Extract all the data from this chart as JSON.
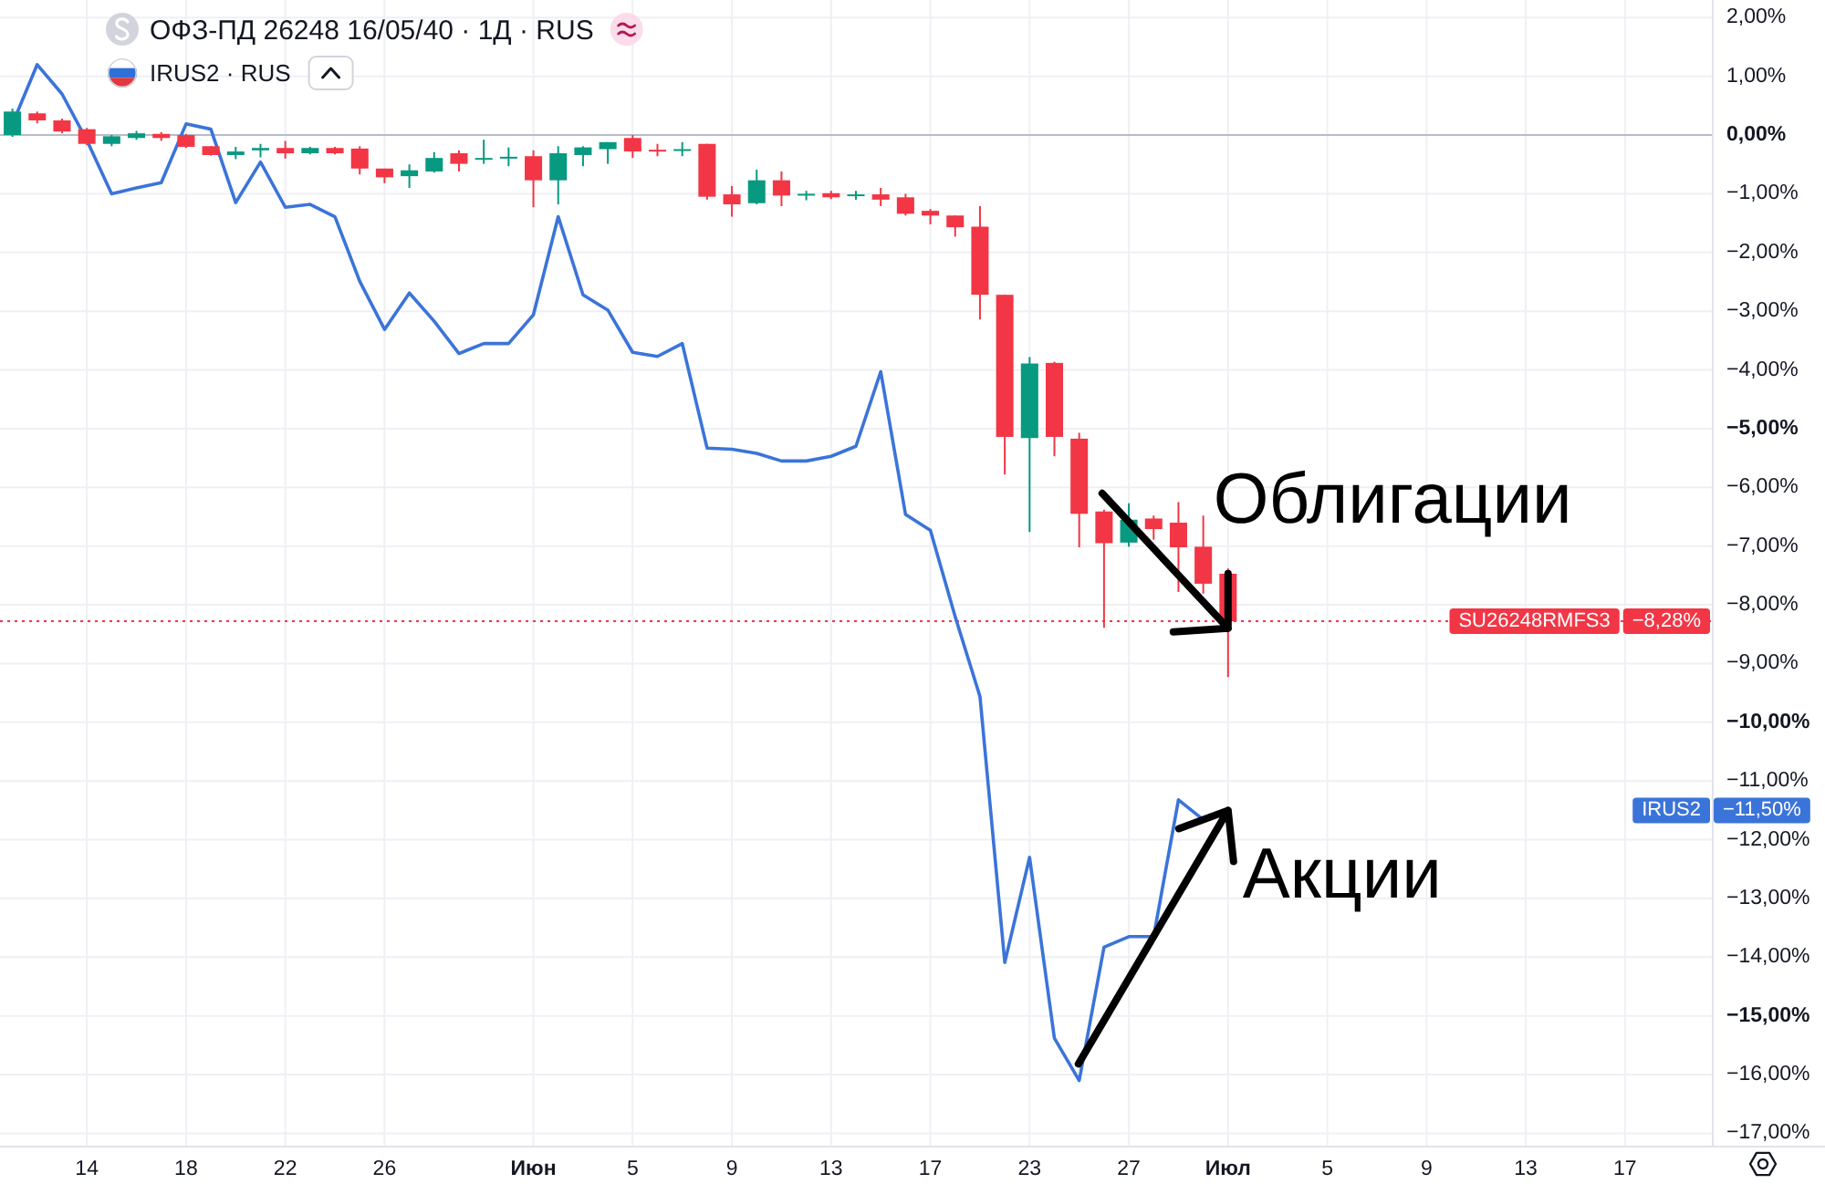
{
  "chart_data": {
    "type": "candlestick",
    "title": "ОФЗ-ПД 26248 16/05/40 · 1Д · RUS",
    "subtitle": "IRUS2 · RUS",
    "categories": [
      null,
      null,
      null,
      "14",
      null,
      null,
      null,
      "18",
      null,
      null,
      null,
      "22",
      null,
      null,
      null,
      "26",
      null,
      null,
      null,
      null,
      null,
      "Июн",
      null,
      null,
      null,
      "5",
      null,
      null,
      null,
      "9",
      null,
      null,
      null,
      "13",
      null,
      null,
      null,
      "17",
      null,
      null,
      null,
      "23",
      null,
      null,
      null,
      "27",
      null,
      null,
      null,
      "Июл",
      null,
      null,
      null,
      "5",
      null,
      null,
      null,
      "9",
      null,
      null,
      null,
      "13",
      null,
      null,
      null,
      "17",
      null,
      null,
      null
    ],
    "series": [
      {
        "name": "SU26248RMFS3",
        "ohlc": [
          [
            0.0,
            0.45,
            -0.03,
            0.4
          ],
          [
            0.37,
            0.4,
            0.2,
            0.25
          ],
          [
            0.25,
            0.28,
            0.03,
            0.06
          ],
          [
            0.1,
            0.12,
            -0.17,
            -0.15
          ],
          [
            -0.15,
            0.0,
            -0.19,
            -0.02
          ],
          [
            -0.05,
            0.07,
            -0.08,
            0.03
          ],
          [
            0.02,
            0.05,
            -0.1,
            -0.05
          ],
          [
            0.0,
            0.02,
            -0.22,
            -0.2
          ],
          [
            -0.19,
            -0.19,
            -0.35,
            -0.34
          ],
          [
            -0.34,
            -0.2,
            -0.41,
            -0.28
          ],
          [
            -0.26,
            -0.15,
            -0.38,
            -0.22
          ],
          [
            -0.22,
            -0.1,
            -0.4,
            -0.31
          ],
          [
            -0.31,
            -0.2,
            -0.33,
            -0.22
          ],
          [
            -0.22,
            -0.2,
            -0.33,
            -0.31
          ],
          [
            -0.23,
            -0.19,
            -0.67,
            -0.57
          ],
          [
            -0.57,
            -0.57,
            -0.82,
            -0.72
          ],
          [
            -0.7,
            -0.5,
            -0.9,
            -0.6
          ],
          [
            -0.62,
            -0.29,
            -0.64,
            -0.39
          ],
          [
            -0.31,
            -0.26,
            -0.62,
            -0.49
          ],
          [
            -0.41,
            -0.08,
            -0.49,
            -0.39
          ],
          [
            -0.4,
            -0.21,
            -0.53,
            -0.37
          ],
          [
            -0.36,
            -0.26,
            -1.23,
            -0.77
          ],
          [
            -0.77,
            -0.19,
            -1.18,
            -0.31
          ],
          [
            -0.34,
            -0.19,
            -0.53,
            -0.21
          ],
          [
            -0.24,
            -0.12,
            -0.49,
            -0.12
          ],
          [
            -0.05,
            0.0,
            -0.39,
            -0.28
          ],
          [
            -0.25,
            -0.15,
            -0.36,
            -0.28
          ],
          [
            -0.25,
            -0.12,
            -0.36,
            -0.24
          ],
          [
            -0.15,
            -0.15,
            -1.1,
            -1.05
          ],
          [
            -1.01,
            -0.87,
            -1.39,
            -1.18
          ],
          [
            -1.16,
            -0.59,
            -1.18,
            -0.77
          ],
          [
            -0.77,
            -0.62,
            -1.21,
            -1.03
          ],
          [
            -1.02,
            -0.95,
            -1.11,
            -1.0
          ],
          [
            -0.99,
            -0.95,
            -1.09,
            -1.06
          ],
          [
            -1.04,
            -0.95,
            -1.1,
            -1.01
          ],
          [
            -1.01,
            -0.9,
            -1.21,
            -1.1
          ],
          [
            -1.06,
            -1.0,
            -1.37,
            -1.34
          ],
          [
            -1.29,
            -1.26,
            -1.52,
            -1.37
          ],
          [
            -1.37,
            -1.37,
            -1.73,
            -1.57
          ],
          [
            -1.56,
            -1.21,
            -3.14,
            -2.72
          ],
          [
            -2.72,
            -2.72,
            -5.78,
            -5.14
          ],
          [
            -5.16,
            -3.78,
            -6.76,
            -3.89
          ],
          [
            -3.88,
            -3.86,
            -5.47,
            -5.14
          ],
          [
            -5.17,
            -5.07,
            -7.02,
            -6.45
          ],
          [
            -6.41,
            -6.38,
            -8.39,
            -6.95
          ],
          [
            -6.94,
            -6.27,
            -7.01,
            -6.55
          ],
          [
            -6.53,
            -6.48,
            -6.89,
            -6.71
          ],
          [
            -6.6,
            -6.25,
            -7.78,
            -7.02
          ],
          [
            -7.01,
            -6.48,
            -7.81,
            -7.64
          ],
          [
            -7.47,
            -7.38,
            -9.23,
            -8.28
          ],
          null,
          null,
          null,
          null,
          null,
          null,
          null,
          null,
          null,
          null,
          null,
          null,
          null,
          null,
          null,
          null,
          null,
          null,
          null
        ],
        "colors": [
          "#089981",
          "#f23645",
          "#f23645",
          "#f23645",
          "#089981",
          "#089981",
          "#f23645",
          "#f23645",
          "#f23645",
          "#089981",
          "#089981",
          "#f23645",
          "#089981",
          "#f23645",
          "#f23645",
          "#f23645",
          "#089981",
          "#089981",
          "#f23645",
          "#089981",
          "#089981",
          "#f23645",
          "#089981",
          "#089981",
          "#089981",
          "#f23645",
          "#f23645",
          "#089981",
          "#f23645",
          "#f23645",
          "#089981",
          "#f23645",
          "#089981",
          "#f23645",
          "#089981",
          "#f23645",
          "#f23645",
          "#f23645",
          "#f23645",
          "#f23645",
          "#f23645",
          "#089981",
          "#f23645",
          "#f23645",
          "#f23645",
          "#089981",
          "#f23645",
          "#f23645",
          "#f23645",
          "#f23645",
          null,
          null,
          null,
          null,
          null,
          null,
          null,
          null,
          null,
          null,
          null,
          null,
          null,
          null,
          null,
          null,
          null,
          null,
          null
        ]
      },
      {
        "type": "line",
        "name": "IRUS2",
        "color": "#3b74d9",
        "values": [
          0.19,
          1.2,
          0.7,
          -0.09,
          -1.0,
          -0.9,
          -0.81,
          0.19,
          0.1,
          -1.15,
          -0.46,
          -1.23,
          -1.18,
          -1.39,
          -2.49,
          -3.31,
          -2.69,
          -3.17,
          -3.72,
          -3.55,
          -3.55,
          -3.06,
          -1.39,
          -2.72,
          -2.98,
          -3.7,
          -3.77,
          -3.55,
          -5.33,
          -5.35,
          -5.42,
          -5.55,
          -5.55,
          -5.47,
          -5.3,
          -4.03,
          -6.46,
          -6.73,
          -8.2,
          -9.56,
          -14.09,
          -12.3,
          -15.38,
          -16.1,
          -13.83,
          -13.65,
          -13.65,
          -11.32,
          -11.66,
          -11.5,
          null,
          null,
          null,
          null,
          null,
          null,
          null,
          null,
          null,
          null,
          null,
          null,
          null,
          null,
          null,
          null,
          null,
          null,
          null
        ]
      }
    ],
    "ylim": [
      -17.21,
      2.3
    ],
    "yticks": [
      {
        "value": 2,
        "label": "2,00%"
      },
      {
        "value": 1,
        "label": "1,00%"
      },
      {
        "value": 0,
        "label": "0,00%"
      },
      {
        "value": -1,
        "label": "−1,00%"
      },
      {
        "value": -2,
        "label": "−2,00%"
      },
      {
        "value": -3,
        "label": "−3,00%"
      },
      {
        "value": -4,
        "label": "−4,00%"
      },
      {
        "value": -5,
        "label": "−5,00%"
      },
      {
        "value": -6,
        "label": "−6,00%"
      },
      {
        "value": -7,
        "label": "−7,00%"
      },
      {
        "value": -8,
        "label": "−8,00%"
      },
      {
        "value": -9,
        "label": "−9,00%"
      },
      {
        "value": -10,
        "label": "−10,00%"
      },
      {
        "value": -11,
        "label": "−11,00%"
      },
      {
        "value": -12,
        "label": "−12,00%"
      },
      {
        "value": -13,
        "label": "−13,00%"
      },
      {
        "value": -14,
        "label": "−14,00%"
      },
      {
        "value": -15,
        "label": "−15,00%"
      },
      {
        "value": -16,
        "label": "−16,00%"
      },
      {
        "value": -17,
        "label": "−17,00%"
      }
    ],
    "grid": true,
    "legend": "right",
    "ref_lines": [
      {
        "axis": "y",
        "value": 0,
        "color": "#b8bcc6",
        "line_style": "solid"
      },
      {
        "axis": "y",
        "value": -8.28,
        "color": "#f23645",
        "line_style": "dotted"
      }
    ],
    "annotations": [
      {
        "text": "Облигации",
        "x": "Июл",
        "y": -8.4
      },
      {
        "text": "Акции",
        "x": "Июл",
        "y": -11.5
      },
      "−8,28%",
      "−11,50%"
    ]
  }
}
